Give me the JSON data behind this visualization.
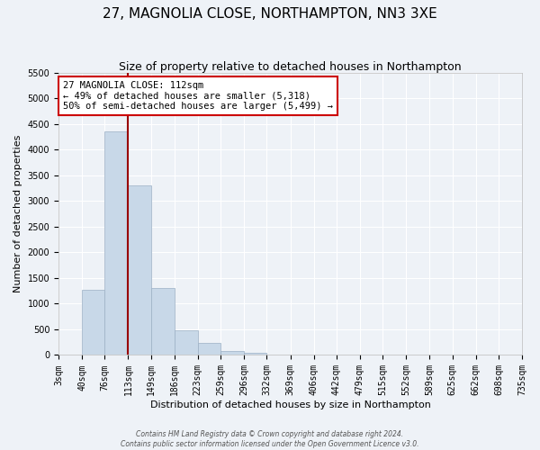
{
  "title": "27, MAGNOLIA CLOSE, NORTHAMPTON, NN3 3XE",
  "subtitle": "Size of property relative to detached houses in Northampton",
  "xlabel": "Distribution of detached houses by size in Northampton",
  "ylabel": "Number of detached properties",
  "bin_labels": [
    "3sqm",
    "40sqm",
    "76sqm",
    "113sqm",
    "149sqm",
    "186sqm",
    "223sqm",
    "259sqm",
    "296sqm",
    "332sqm",
    "369sqm",
    "406sqm",
    "442sqm",
    "479sqm",
    "515sqm",
    "552sqm",
    "589sqm",
    "625sqm",
    "662sqm",
    "698sqm",
    "735sqm"
  ],
  "bar_values": [
    0,
    1270,
    4350,
    3300,
    1300,
    480,
    230,
    80,
    40,
    0,
    0,
    0,
    0,
    0,
    0,
    0,
    0,
    0,
    0,
    0
  ],
  "bin_edges": [
    3,
    40,
    76,
    113,
    149,
    186,
    223,
    259,
    296,
    332,
    369,
    406,
    442,
    479,
    515,
    552,
    589,
    625,
    662,
    698,
    735
  ],
  "bar_color": "#c8d8e8",
  "bar_edgecolor": "#9cb0c4",
  "vline_x": 113,
  "vline_color": "#990000",
  "ylim": [
    0,
    5500
  ],
  "yticks": [
    0,
    500,
    1000,
    1500,
    2000,
    2500,
    3000,
    3500,
    4000,
    4500,
    5000,
    5500
  ],
  "annotation_title": "27 MAGNOLIA CLOSE: 112sqm",
  "annotation_line1": "← 49% of detached houses are smaller (5,318)",
  "annotation_line2": "50% of semi-detached houses are larger (5,499) →",
  "annotation_box_facecolor": "#ffffff",
  "annotation_box_edgecolor": "#cc0000",
  "bg_color": "#eef2f7",
  "footer1": "Contains HM Land Registry data © Crown copyright and database right 2024.",
  "footer2": "Contains public sector information licensed under the Open Government Licence v3.0.",
  "grid_color": "#ffffff",
  "title_fontsize": 11,
  "subtitle_fontsize": 9,
  "axis_label_fontsize": 8,
  "tick_fontsize": 7,
  "annot_fontsize": 7.5
}
